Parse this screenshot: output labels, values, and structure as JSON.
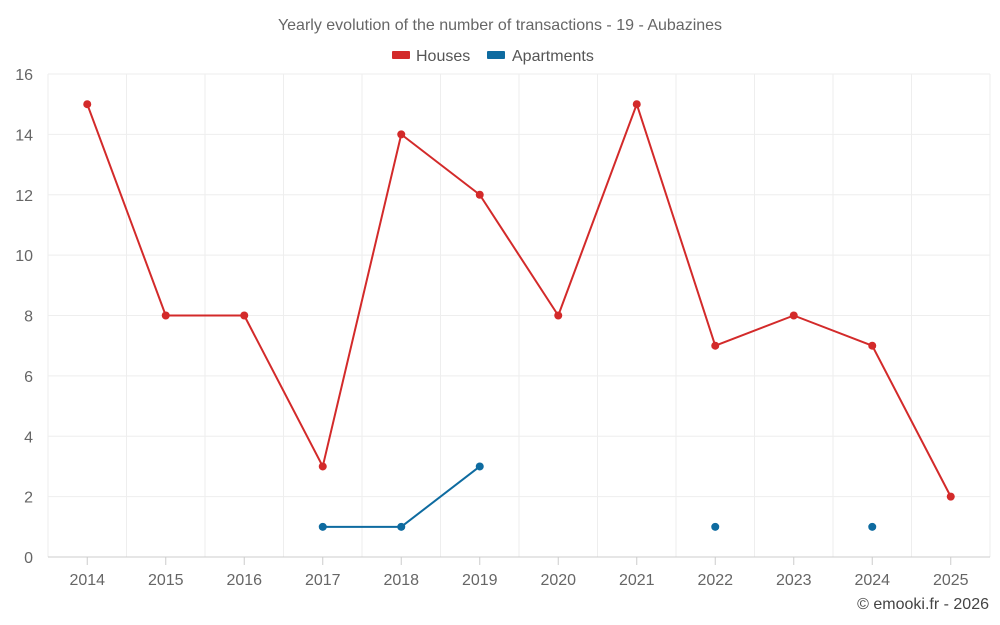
{
  "chart_data": {
    "type": "line",
    "title": "Yearly evolution of the number of transactions - 19 - Aubazines",
    "categories": [
      "2014",
      "2015",
      "2016",
      "2017",
      "2018",
      "2019",
      "2020",
      "2021",
      "2022",
      "2023",
      "2024",
      "2025"
    ],
    "series": [
      {
        "name": "Houses",
        "color": "#d32a2a",
        "values": [
          15,
          8,
          8,
          3,
          14,
          12,
          8,
          15,
          7,
          8,
          7,
          2
        ]
      },
      {
        "name": "Apartments",
        "color": "#0e6ba0",
        "values": [
          null,
          null,
          null,
          1,
          1,
          3,
          null,
          null,
          1,
          null,
          1,
          null
        ]
      }
    ],
    "ylim": [
      0,
      16
    ],
    "yticks": [
      0,
      2,
      4,
      6,
      8,
      10,
      12,
      14,
      16
    ],
    "xlabel": "",
    "ylabel": "",
    "grid": true,
    "legend_position": "top-center"
  },
  "credit": "© emooki.fr - 2026"
}
